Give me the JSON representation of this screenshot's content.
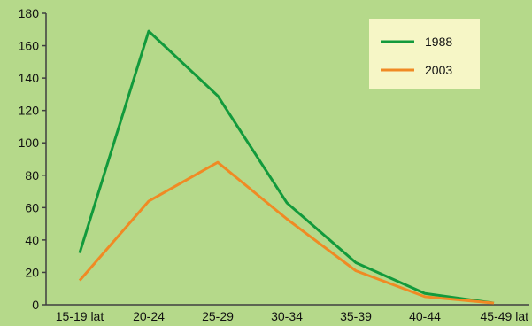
{
  "chart_data": {
    "type": "line",
    "title": "",
    "xlabel": "",
    "ylabel": "",
    "categories": [
      "15-19 lat",
      "20-24",
      "25-29",
      "30-34",
      "35-39",
      "40-44",
      "45-49 lat"
    ],
    "ylim": [
      0,
      180
    ],
    "yticks": [
      0,
      20,
      40,
      60,
      80,
      100,
      120,
      140,
      160,
      180
    ],
    "grid": false,
    "legend_position": "top-right",
    "series": [
      {
        "name": "1988",
        "color": "#129a3c",
        "values": [
          32,
          169,
          129,
          63,
          26,
          7,
          1
        ]
      },
      {
        "name": "2003",
        "color": "#f08a24",
        "values": [
          15,
          64,
          88,
          53,
          21,
          5,
          1
        ]
      }
    ]
  },
  "colors": {
    "background": "#b5d98a",
    "axis": "#3f3f3f",
    "legend_bg": "#f6f6c6"
  }
}
